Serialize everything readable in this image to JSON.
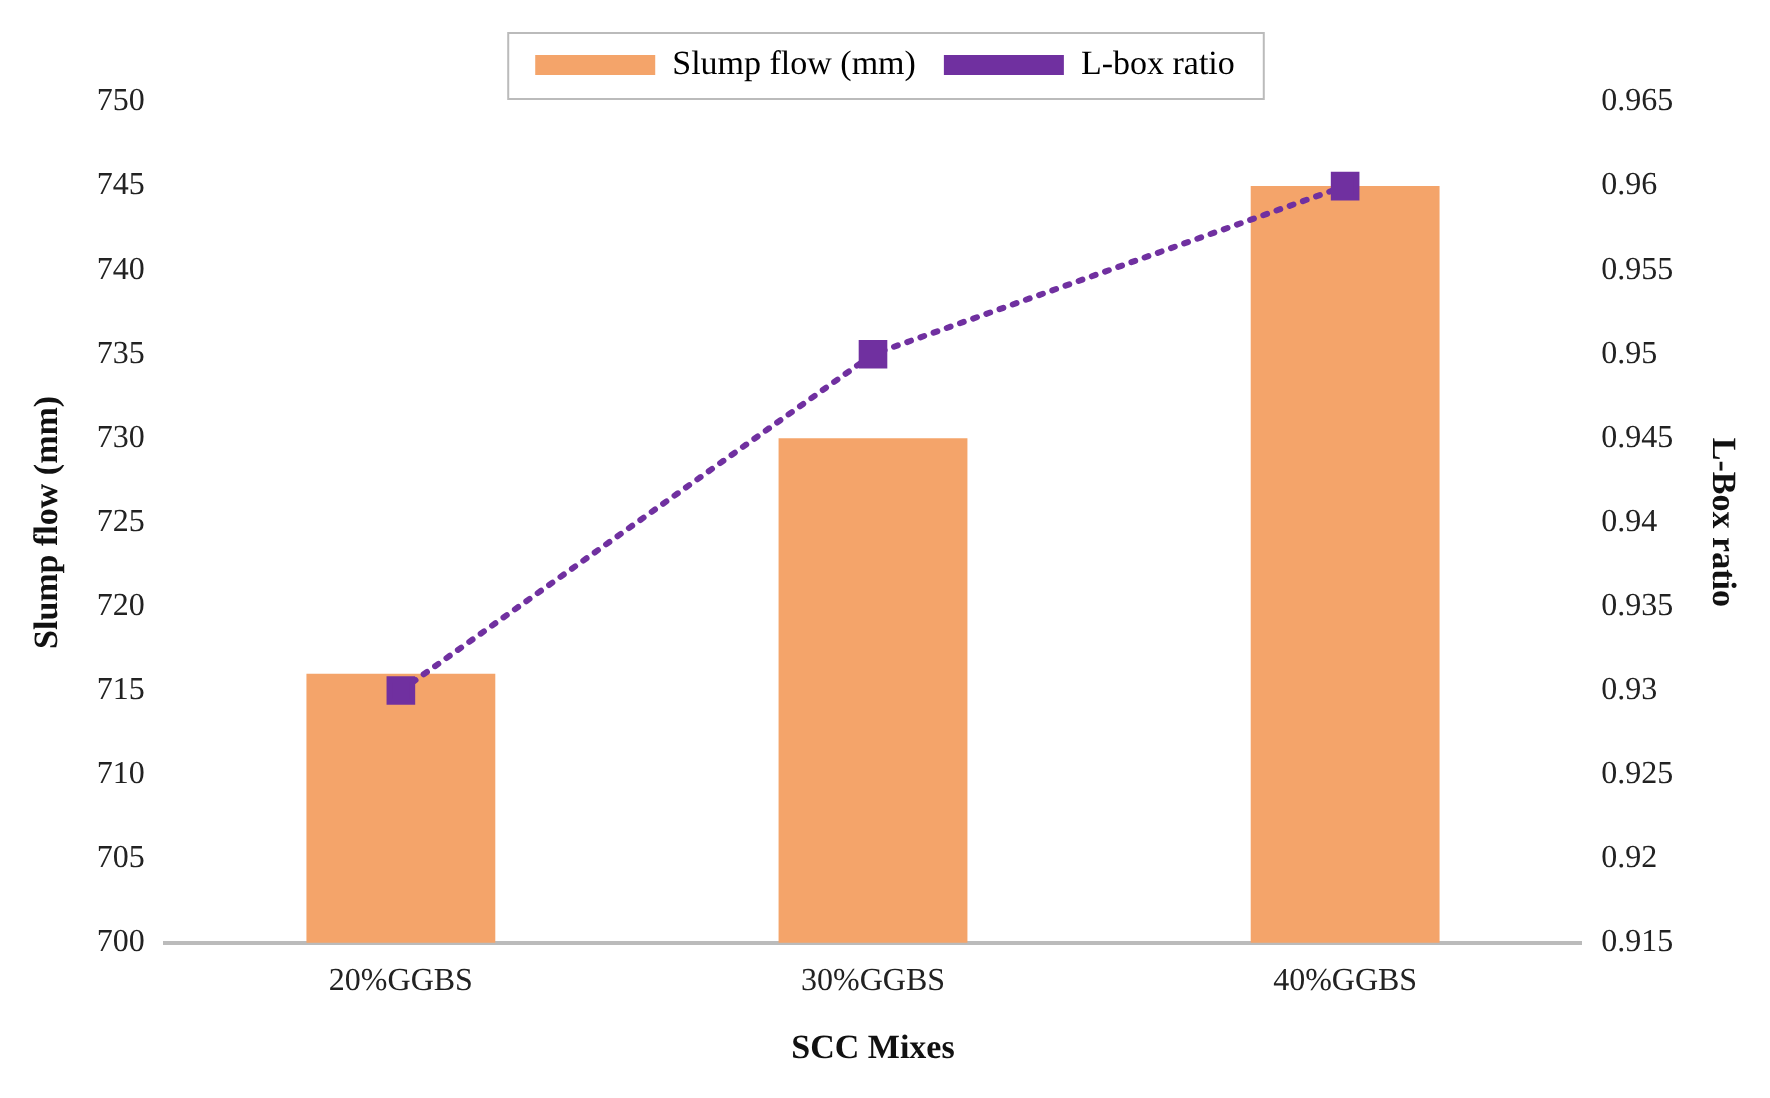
{
  "chart_data": {
    "type": "bar",
    "xlabel": "SCC Mixes",
    "ylabel": "Slump flow (mm)",
    "y2label": "L-Box ratio",
    "categories": [
      "20%GGBS",
      "30%GGBS",
      "40%GGBS"
    ],
    "series": [
      {
        "name": "Slump flow (mm)",
        "color": "#f4a46a",
        "values": [
          716,
          730,
          745
        ]
      },
      {
        "name": "L-box ratio",
        "type": "line",
        "axis": "y2",
        "color": "#7030a0",
        "values": [
          0.93,
          0.95,
          0.96
        ],
        "marker": "square",
        "line_style": "dotted"
      }
    ],
    "ylim": [
      700,
      750
    ],
    "yticks": [
      700,
      705,
      710,
      715,
      720,
      725,
      730,
      735,
      740,
      745,
      750
    ],
    "y2lim": [
      0.915,
      0.965
    ],
    "y2ticks": [
      0.915,
      0.92,
      0.925,
      0.93,
      0.935,
      0.94,
      0.945,
      0.95,
      0.955,
      0.96,
      0.965
    ],
    "grid": false,
    "legend": "top"
  }
}
